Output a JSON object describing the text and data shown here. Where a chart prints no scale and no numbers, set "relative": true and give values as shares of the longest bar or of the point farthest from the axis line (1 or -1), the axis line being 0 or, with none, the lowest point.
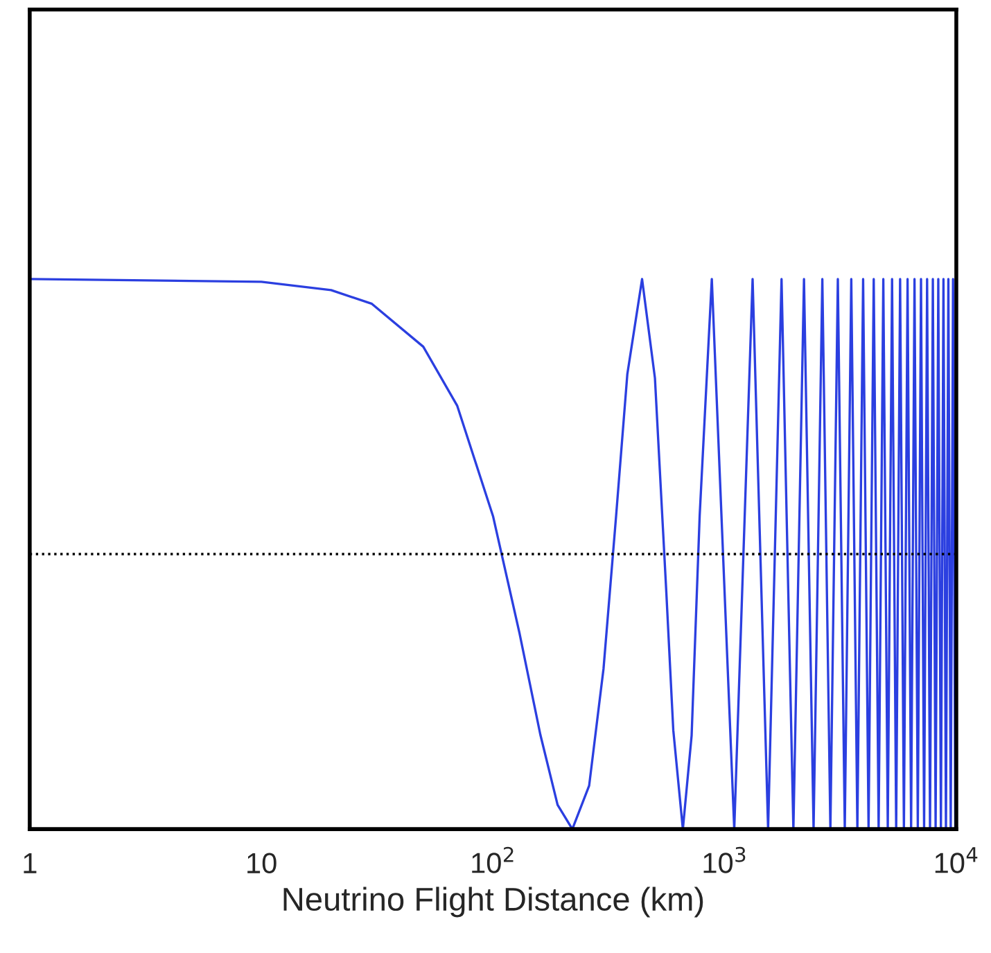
{
  "chart_data": {
    "type": "line",
    "xlabel": "Neutrino Flight Distance (km)",
    "relative": true,
    "log": "x",
    "xlim": [
      1,
      10000
    ],
    "xticks": [
      1,
      10,
      {
        "value": 100,
        "label": "10$^{2}$"
      },
      {
        "value": 1000,
        "label": "10$^{3}$"
      },
      {
        "value": 10000,
        "label": "10$^{4}$"
      }
    ],
    "grid": false,
    "legend": false,
    "marker": "none",
    "line_style": "solid",
    "ref_lines": [
      {
        "axis": "y",
        "value": 0.5,
        "color": "#000000",
        "line_style": "dotted"
      }
    ],
    "series": [
      {
        "color": "#2b3fe0",
        "x": [
          1,
          10,
          20,
          30,
          50,
          70,
          100,
          130,
          160,
          190,
          220,
          260,
          300,
          340,
          380,
          440,
          500,
          560,
          600,
          660,
          720,
          780,
          880,
          1100,
          1320,
          1540,
          1760,
          1980,
          2200,
          2420,
          2640,
          2860,
          3080,
          3300,
          3520,
          3740,
          3960,
          4180,
          4400,
          4620,
          4840,
          5060,
          5280,
          5500,
          5720,
          5940,
          6160,
          6380,
          6600,
          6820,
          7040,
          7260,
          7480,
          7700,
          7920,
          8140,
          8360,
          8580,
          8800,
          9020,
          9240,
          9460,
          9680,
          9900,
          10000
        ],
        "values": [
          1,
          0.995,
          0.98,
          0.955,
          0.877,
          0.77,
          0.569,
          0.357,
          0.172,
          0.044,
          0,
          0.079,
          0.292,
          0.57,
          0.827,
          1,
          0.82,
          0.43,
          0.18,
          0,
          0.17,
          0.57,
          1,
          0,
          1,
          0,
          1,
          0,
          1,
          0,
          1,
          0,
          1,
          0,
          1,
          0,
          1,
          0,
          1,
          0,
          1,
          0,
          1,
          0,
          1,
          0,
          1,
          0,
          1,
          0,
          1,
          0,
          1,
          0,
          1,
          0,
          1,
          0,
          1,
          0,
          1,
          0,
          1,
          0,
          0.43
        ]
      }
    ]
  }
}
